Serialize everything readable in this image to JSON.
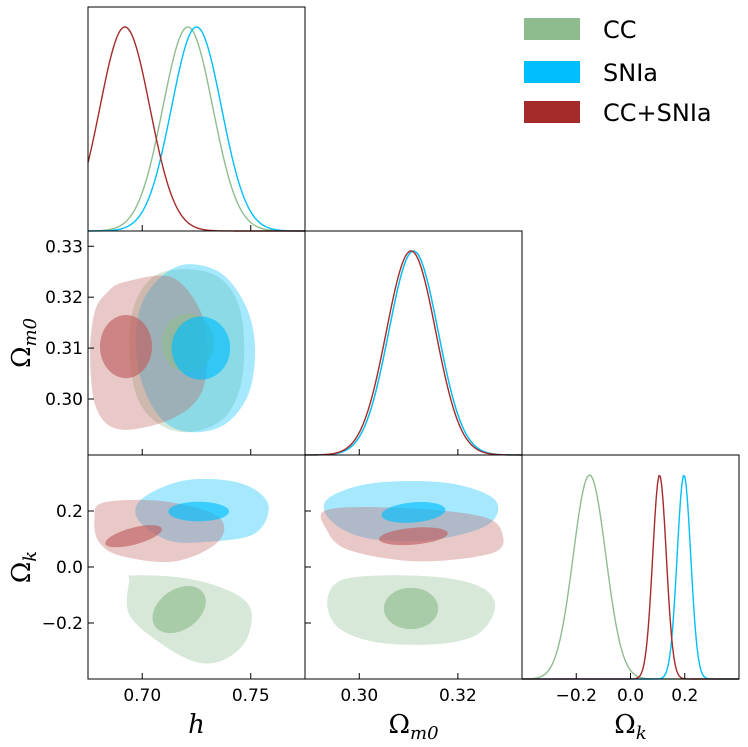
{
  "chart_data": {
    "type": "corner",
    "parameters": [
      {
        "key": "h",
        "label": "h",
        "range": [
          0.675,
          0.775
        ],
        "ticks": [
          0.7,
          0.75
        ],
        "tick_labels": [
          "0.70",
          "0.75"
        ]
      },
      {
        "key": "Om",
        "label": "Ω",
        "label_sub": "m0",
        "range": [
          0.289,
          0.333
        ],
        "ticks": [
          0.3,
          0.31,
          0.32,
          0.33
        ],
        "tick_labels": [
          "0.30",
          "0.31",
          "0.32",
          "0.33"
        ],
        "diag_ticks": [
          0.3,
          0.32
        ],
        "diag_tick_labels": [
          "0.30",
          "0.32"
        ]
      },
      {
        "key": "Ok",
        "label": "Ω",
        "label_sub": "k",
        "range": [
          -0.4,
          0.4
        ],
        "ticks": [
          -0.2,
          0.0,
          0.2
        ],
        "tick_labels": [
          "−0.2",
          "0.0",
          "0.2"
        ],
        "diag_ticks": [
          -0.2,
          0.0,
          0.2
        ],
        "diag_tick_labels": [
          "−0.2",
          "0.0",
          "0.2"
        ]
      }
    ],
    "series": [
      {
        "name": "CC",
        "color": "#8fbc8f",
        "fill": "#8fbc8f",
        "mean": {
          "h": 0.721,
          "Om": 0.311,
          "Ok": -0.151
        },
        "sigma1d": {
          "h": 0.0115,
          "Om": 0.005,
          "Ok": 0.06
        },
        "inner": {
          "h_Om": {
            "cx": 0.721,
            "cy": 0.311,
            "rx": 0.012,
            "ry": 0.0058,
            "angle": 0
          },
          "h_Ok": {
            "cx": 0.717,
            "cy": -0.152,
            "rx": 0.0135,
            "ry": 0.072,
            "angle": -35
          },
          "Om_Ok": {
            "cx": 0.3105,
            "cy": -0.148,
            "rx": 0.0055,
            "ry": 0.074,
            "angle": 0
          }
        },
        "outer": {
          "h_Om": [
            [
              0.72,
              0.3255
            ],
            [
              0.735,
              0.324
            ],
            [
              0.744,
              0.319
            ],
            [
              0.747,
              0.311
            ],
            [
              0.745,
              0.302
            ],
            [
              0.737,
              0.296
            ],
            [
              0.722,
              0.2935
            ],
            [
              0.708,
              0.295
            ],
            [
              0.698,
              0.3
            ],
            [
              0.694,
              0.309
            ],
            [
              0.696,
              0.318
            ],
            [
              0.705,
              0.324
            ]
          ],
          "h_Ok": [
            [
              0.696,
              -0.03
            ],
            [
              0.72,
              -0.04
            ],
            [
              0.74,
              -0.085
            ],
            [
              0.75,
              -0.15
            ],
            [
              0.748,
              -0.26
            ],
            [
              0.738,
              -0.33
            ],
            [
              0.725,
              -0.34
            ],
            [
              0.708,
              -0.27
            ],
            [
              0.694,
              -0.17
            ],
            [
              0.694,
              -0.05
            ]
          ],
          "Om_Ok": [
            [
              0.296,
              -0.05
            ],
            [
              0.305,
              -0.03
            ],
            [
              0.318,
              -0.04
            ],
            [
              0.3255,
              -0.08
            ],
            [
              0.3275,
              -0.15
            ],
            [
              0.324,
              -0.24
            ],
            [
              0.316,
              -0.275
            ],
            [
              0.304,
              -0.27
            ],
            [
              0.296,
              -0.22
            ],
            [
              0.2935,
              -0.13
            ]
          ]
        }
      },
      {
        "name": "SNIa",
        "color": "#00bfff",
        "fill": "#00bfff",
        "mean": {
          "h": 0.725,
          "Om": 0.311,
          "Ok": 0.197
        },
        "sigma1d": {
          "h": 0.0115,
          "Om": 0.005,
          "Ok": 0.025
        },
        "inner": {
          "h_Om": {
            "cx": 0.727,
            "cy": 0.31,
            "rx": 0.0135,
            "ry": 0.0062,
            "angle": 0
          },
          "h_Ok": {
            "cx": 0.726,
            "cy": 0.198,
            "rx": 0.014,
            "ry": 0.035,
            "angle": 0
          },
          "Om_Ok": {
            "cx": 0.311,
            "cy": 0.195,
            "rx": 0.0065,
            "ry": 0.036,
            "angle": -5
          }
        },
        "outer": {
          "h_Om": [
            [
              0.722,
              0.3265
            ],
            [
              0.737,
              0.3245
            ],
            [
              0.748,
              0.318
            ],
            [
              0.752,
              0.31
            ],
            [
              0.749,
              0.301
            ],
            [
              0.738,
              0.295
            ],
            [
              0.722,
              0.2935
            ],
            [
              0.709,
              0.296
            ],
            [
              0.7,
              0.303
            ],
            [
              0.697,
              0.311
            ],
            [
              0.7,
              0.319
            ],
            [
              0.71,
              0.3245
            ]
          ],
          "h_Ok": [
            [
              0.7,
              0.245
            ],
            [
              0.72,
              0.31
            ],
            [
              0.745,
              0.3
            ],
            [
              0.758,
              0.225
            ],
            [
              0.752,
              0.12
            ],
            [
              0.73,
              0.09
            ],
            [
              0.712,
              0.095
            ],
            [
              0.698,
              0.17
            ]
          ],
          "Om_Ok": [
            [
              0.2937,
              0.245
            ],
            [
              0.303,
              0.3
            ],
            [
              0.318,
              0.3
            ],
            [
              0.3275,
              0.24
            ],
            [
              0.326,
              0.15
            ],
            [
              0.314,
              0.095
            ],
            [
              0.301,
              0.105
            ],
            [
              0.294,
              0.17
            ]
          ]
        }
      },
      {
        "name": "CC+SNIa",
        "color": "#a52a2a",
        "fill": "#c06060",
        "mean": {
          "h": 0.692,
          "Om": 0.3105,
          "Ok": 0.107
        },
        "sigma1d": {
          "h": 0.0115,
          "Om": 0.005,
          "Ok": 0.025
        },
        "inner": {
          "h_Om": {
            "cx": 0.6925,
            "cy": 0.3103,
            "rx": 0.012,
            "ry": 0.0062,
            "angle": 0
          },
          "h_Ok": {
            "cx": 0.696,
            "cy": 0.11,
            "rx": 0.0135,
            "ry": 0.03,
            "angle": -15
          },
          "Om_Ok": {
            "cx": 0.311,
            "cy": 0.11,
            "rx": 0.007,
            "ry": 0.03,
            "angle": -5
          }
        },
        "outer": {
          "h_Om": [
            [
              0.692,
              0.323
            ],
            [
              0.713,
              0.324
            ],
            [
              0.726,
              0.318
            ],
            [
              0.73,
              0.31
            ],
            [
              0.727,
              0.301
            ],
            [
              0.713,
              0.296
            ],
            [
              0.69,
              0.294
            ],
            [
              0.679,
              0.298
            ],
            [
              0.676,
              0.308
            ],
            [
              0.678,
              0.317
            ],
            [
              0.684,
              0.321
            ]
          ],
          "h_Ok": [
            [
              0.682,
              0.23
            ],
            [
              0.71,
              0.235
            ],
            [
              0.735,
              0.18
            ],
            [
              0.735,
              0.09
            ],
            [
              0.715,
              0.02
            ],
            [
              0.69,
              0.04
            ],
            [
              0.68,
              0.09
            ],
            [
              0.678,
              0.17
            ]
          ],
          "Om_Ok": [
            [
              0.2936,
              0.205
            ],
            [
              0.31,
              0.21
            ],
            [
              0.325,
              0.18
            ],
            [
              0.329,
              0.12
            ],
            [
              0.327,
              0.05
            ],
            [
              0.312,
              0.02
            ],
            [
              0.298,
              0.06
            ],
            [
              0.2935,
              0.13
            ]
          ]
        }
      }
    ],
    "legend": {
      "placement": "top-right",
      "entries": [
        "CC",
        "SNIa",
        "CC+SNIa"
      ]
    },
    "grid": false
  }
}
